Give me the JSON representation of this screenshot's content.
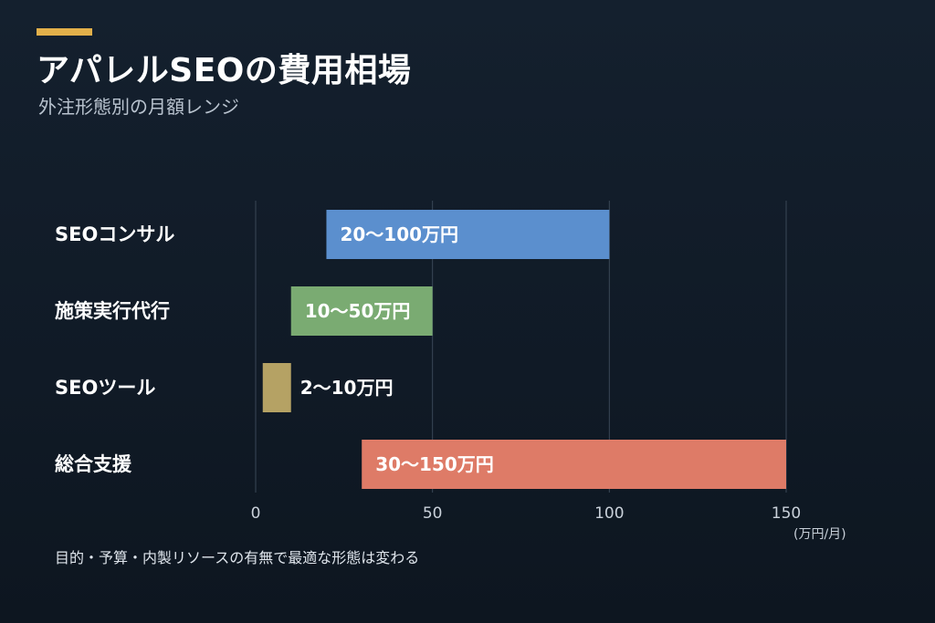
{
  "header": {
    "title": "アパレルSEOの費用相場",
    "subtitle": "外注形態別の月額レンジ",
    "accent_color": "#e2b04a"
  },
  "footnote": "目的・予算・内製リソースの有無で最適な形態は変わる",
  "chart_data": {
    "type": "bar",
    "orientation": "horizontal",
    "categories": [
      "SEOコンサル",
      "施策実行代行",
      "SEOツール",
      "総合支援"
    ],
    "series": [
      {
        "ranges": [
          [
            20,
            100
          ],
          [
            10,
            50
          ],
          [
            2,
            10
          ],
          [
            30,
            150
          ]
        ],
        "labels": [
          "20〜100万円",
          "10〜50万円",
          "2〜10万円",
          "30〜150万円"
        ],
        "colors": [
          "#5b8fce",
          "#7aab72",
          "#b5a264",
          "#de7b67"
        ]
      }
    ],
    "xlim": [
      0,
      150
    ],
    "xticks": [
      0,
      50,
      100,
      150
    ],
    "xunit": "(万円/月)",
    "grid": true
  }
}
